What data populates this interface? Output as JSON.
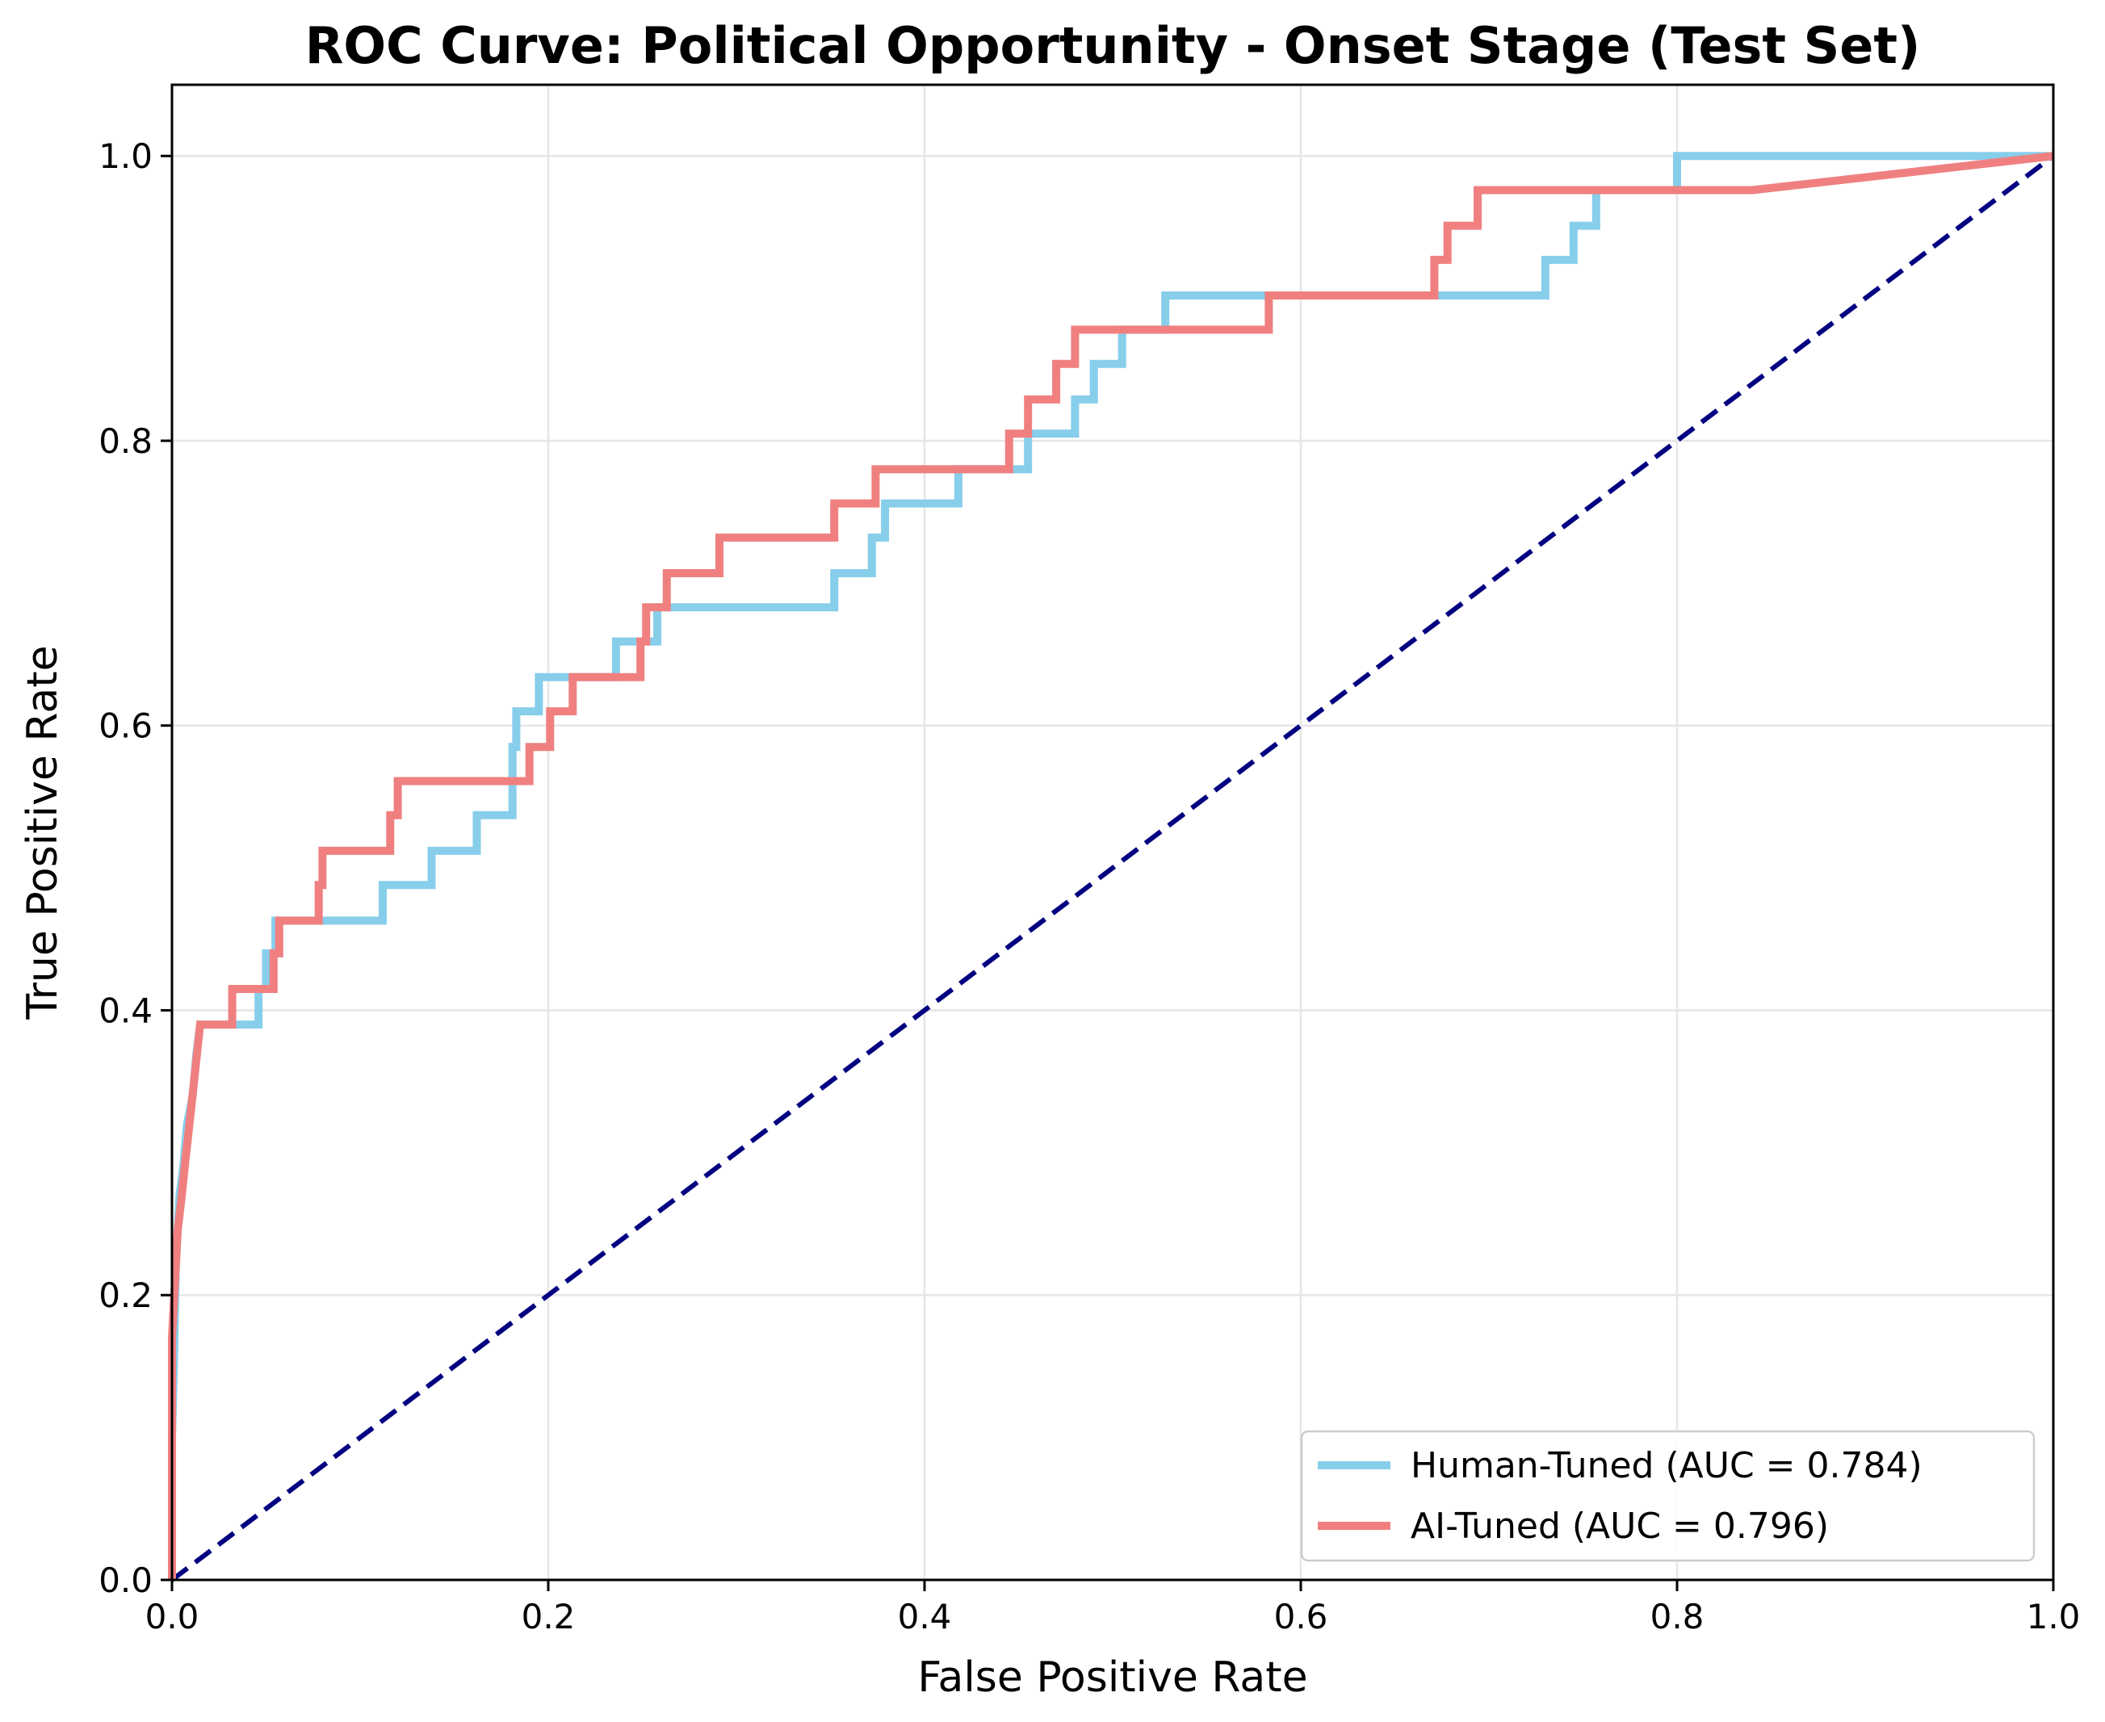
{
  "chart_data": {
    "type": "line",
    "title": "ROC Curve: Political Opportunity - Onset Stage (Test Set)",
    "xlabel": "False Positive Rate",
    "ylabel": "True Positive Rate",
    "xlim": [
      0.0,
      1.0
    ],
    "ylim": [
      0.0,
      1.05
    ],
    "xticks": [
      "0.0",
      "0.2",
      "0.4",
      "0.6",
      "0.8",
      "1.0"
    ],
    "yticks": [
      "0.0",
      "0.2",
      "0.4",
      "0.6",
      "0.8",
      "1.0"
    ],
    "grid": true,
    "legend_position": "lower-right",
    "baseline": {
      "points": [
        [
          0,
          0
        ],
        [
          1,
          1
        ]
      ],
      "color": "#000080",
      "style": "dashed"
    },
    "series": [
      {
        "name": "Human-Tuned (AUC = 0.784)",
        "color": "#87CEEB",
        "points": [
          [
            0,
            0
          ],
          [
            0,
            0.1
          ],
          [
            0.001,
            0.15
          ],
          [
            0.002,
            0.22
          ],
          [
            0.004,
            0.27
          ],
          [
            0.006,
            0.29
          ],
          [
            0.008,
            0.32
          ],
          [
            0.011,
            0.34
          ],
          [
            0.013,
            0.37
          ],
          [
            0.015,
            0.39
          ],
          [
            0.046,
            0.39
          ],
          [
            0.046,
            0.415
          ],
          [
            0.05,
            0.415
          ],
          [
            0.05,
            0.44
          ],
          [
            0.055,
            0.44
          ],
          [
            0.055,
            0.463
          ],
          [
            0.112,
            0.463
          ],
          [
            0.112,
            0.488
          ],
          [
            0.138,
            0.488
          ],
          [
            0.138,
            0.512
          ],
          [
            0.162,
            0.512
          ],
          [
            0.162,
            0.537
          ],
          [
            0.181,
            0.537
          ],
          [
            0.181,
            0.585
          ],
          [
            0.183,
            0.585
          ],
          [
            0.183,
            0.61
          ],
          [
            0.195,
            0.61
          ],
          [
            0.195,
            0.634
          ],
          [
            0.236,
            0.634
          ],
          [
            0.236,
            0.659
          ],
          [
            0.258,
            0.659
          ],
          [
            0.258,
            0.683
          ],
          [
            0.352,
            0.683
          ],
          [
            0.352,
            0.707
          ],
          [
            0.372,
            0.707
          ],
          [
            0.372,
            0.732
          ],
          [
            0.379,
            0.732
          ],
          [
            0.379,
            0.756
          ],
          [
            0.418,
            0.756
          ],
          [
            0.418,
            0.78
          ],
          [
            0.455,
            0.78
          ],
          [
            0.455,
            0.805
          ],
          [
            0.48,
            0.805
          ],
          [
            0.48,
            0.829
          ],
          [
            0.49,
            0.829
          ],
          [
            0.49,
            0.854
          ],
          [
            0.505,
            0.854
          ],
          [
            0.505,
            0.878
          ],
          [
            0.528,
            0.878
          ],
          [
            0.528,
            0.902
          ],
          [
            0.73,
            0.902
          ],
          [
            0.73,
            0.927
          ],
          [
            0.745,
            0.927
          ],
          [
            0.745,
            0.951
          ],
          [
            0.757,
            0.951
          ],
          [
            0.757,
            0.976
          ],
          [
            0.8,
            0.976
          ],
          [
            0.8,
            1.0
          ],
          [
            1.0,
            1.0
          ]
        ]
      },
      {
        "name": "AI-Tuned (AUC = 0.796)",
        "color": "#F08080",
        "points": [
          [
            0,
            0
          ],
          [
            0,
            0.17
          ],
          [
            0.002,
            0.22
          ],
          [
            0.003,
            0.245
          ],
          [
            0.005,
            0.268
          ],
          [
            0.007,
            0.293
          ],
          [
            0.009,
            0.317
          ],
          [
            0.011,
            0.341
          ],
          [
            0.013,
            0.366
          ],
          [
            0.015,
            0.39
          ],
          [
            0.032,
            0.39
          ],
          [
            0.032,
            0.415
          ],
          [
            0.054,
            0.415
          ],
          [
            0.054,
            0.44
          ],
          [
            0.057,
            0.44
          ],
          [
            0.057,
            0.463
          ],
          [
            0.078,
            0.463
          ],
          [
            0.078,
            0.488
          ],
          [
            0.08,
            0.488
          ],
          [
            0.08,
            0.512
          ],
          [
            0.116,
            0.512
          ],
          [
            0.116,
            0.537
          ],
          [
            0.12,
            0.537
          ],
          [
            0.12,
            0.561
          ],
          [
            0.19,
            0.561
          ],
          [
            0.19,
            0.585
          ],
          [
            0.201,
            0.585
          ],
          [
            0.201,
            0.61
          ],
          [
            0.213,
            0.61
          ],
          [
            0.213,
            0.634
          ],
          [
            0.249,
            0.634
          ],
          [
            0.249,
            0.659
          ],
          [
            0.252,
            0.659
          ],
          [
            0.252,
            0.683
          ],
          [
            0.263,
            0.683
          ],
          [
            0.263,
            0.707
          ],
          [
            0.291,
            0.707
          ],
          [
            0.291,
            0.732
          ],
          [
            0.352,
            0.732
          ],
          [
            0.352,
            0.756
          ],
          [
            0.374,
            0.756
          ],
          [
            0.374,
            0.78
          ],
          [
            0.445,
            0.78
          ],
          [
            0.445,
            0.805
          ],
          [
            0.455,
            0.805
          ],
          [
            0.455,
            0.829
          ],
          [
            0.47,
            0.829
          ],
          [
            0.47,
            0.854
          ],
          [
            0.48,
            0.854
          ],
          [
            0.48,
            0.878
          ],
          [
            0.583,
            0.878
          ],
          [
            0.583,
            0.902
          ],
          [
            0.671,
            0.902
          ],
          [
            0.671,
            0.927
          ],
          [
            0.678,
            0.927
          ],
          [
            0.678,
            0.951
          ],
          [
            0.694,
            0.951
          ],
          [
            0.694,
            0.976
          ],
          [
            0.84,
            0.976
          ],
          [
            1.0,
            1.0
          ]
        ]
      }
    ]
  }
}
